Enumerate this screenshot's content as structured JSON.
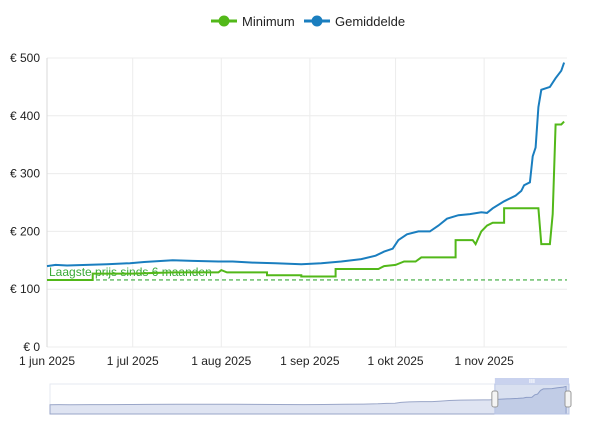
{
  "chart_data": {
    "type": "line",
    "title": "",
    "xlabel": "",
    "ylabel": "",
    "x_ticks": [
      "1 jun 2025",
      "1 jul 2025",
      "1 aug 2025",
      "1 sep 2025",
      "1 okt 2025",
      "1 nov 2025"
    ],
    "x_tick_dates": [
      "2025-06-01",
      "2025-07-01",
      "2025-08-01",
      "2025-09-01",
      "2025-10-01",
      "2025-11-01"
    ],
    "x_range": [
      "2025-06-01",
      "2025-11-30"
    ],
    "y_ticks": [
      "€ 0",
      "€ 100",
      "€ 200",
      "€ 300",
      "€ 400",
      "€ 500"
    ],
    "y_tick_values": [
      0,
      100,
      200,
      300,
      400,
      500
    ],
    "ylim": [
      0,
      500
    ],
    "grid": true,
    "legend_position": "top-center",
    "series": [
      {
        "name": "Minimum",
        "color": "#52b819",
        "style": "step",
        "points": [
          [
            "2025-06-01",
            116
          ],
          [
            "2025-06-17",
            116
          ],
          [
            "2025-06-17",
            127
          ],
          [
            "2025-07-01",
            127
          ],
          [
            "2025-07-15",
            129
          ],
          [
            "2025-07-31",
            129
          ],
          [
            "2025-08-01",
            133
          ],
          [
            "2025-08-03",
            129
          ],
          [
            "2025-08-17",
            129
          ],
          [
            "2025-08-17",
            124
          ],
          [
            "2025-08-29",
            124
          ],
          [
            "2025-08-29",
            122
          ],
          [
            "2025-09-10",
            122
          ],
          [
            "2025-09-10",
            135
          ],
          [
            "2025-09-25",
            135
          ],
          [
            "2025-09-27",
            140
          ],
          [
            "2025-10-01",
            142
          ],
          [
            "2025-10-04",
            148
          ],
          [
            "2025-10-08",
            148
          ],
          [
            "2025-10-10",
            155
          ],
          [
            "2025-10-22",
            155
          ],
          [
            "2025-10-22",
            185
          ],
          [
            "2025-10-28",
            185
          ],
          [
            "2025-10-29",
            178
          ],
          [
            "2025-10-31",
            200
          ],
          [
            "2025-11-02",
            210
          ],
          [
            "2025-11-04",
            215
          ],
          [
            "2025-11-08",
            215
          ],
          [
            "2025-11-08",
            240
          ],
          [
            "2025-11-20",
            240
          ],
          [
            "2025-11-21",
            178
          ],
          [
            "2025-11-24",
            178
          ],
          [
            "2025-11-25",
            230
          ],
          [
            "2025-11-26",
            385
          ],
          [
            "2025-11-28",
            385
          ],
          [
            "2025-11-29",
            390
          ]
        ]
      },
      {
        "name": "Gemiddelde",
        "color": "#1a7ebf",
        "style": "line",
        "points": [
          [
            "2025-06-01",
            140
          ],
          [
            "2025-06-04",
            142
          ],
          [
            "2025-06-08",
            141
          ],
          [
            "2025-06-15",
            142
          ],
          [
            "2025-06-22",
            143
          ],
          [
            "2025-06-30",
            145
          ],
          [
            "2025-07-05",
            147
          ],
          [
            "2025-07-15",
            150
          ],
          [
            "2025-07-22",
            149
          ],
          [
            "2025-07-31",
            148
          ],
          [
            "2025-08-05",
            148
          ],
          [
            "2025-08-12",
            146
          ],
          [
            "2025-08-20",
            145
          ],
          [
            "2025-08-29",
            143
          ],
          [
            "2025-09-05",
            145
          ],
          [
            "2025-09-12",
            148
          ],
          [
            "2025-09-19",
            152
          ],
          [
            "2025-09-24",
            158
          ],
          [
            "2025-09-27",
            165
          ],
          [
            "2025-09-30",
            170
          ],
          [
            "2025-10-02",
            185
          ],
          [
            "2025-10-05",
            195
          ],
          [
            "2025-10-09",
            200
          ],
          [
            "2025-10-13",
            200
          ],
          [
            "2025-10-16",
            210
          ],
          [
            "2025-10-19",
            222
          ],
          [
            "2025-10-23",
            228
          ],
          [
            "2025-10-27",
            230
          ],
          [
            "2025-10-31",
            233
          ],
          [
            "2025-11-02",
            232
          ],
          [
            "2025-11-04",
            240
          ],
          [
            "2025-11-08",
            252
          ],
          [
            "2025-11-12",
            262
          ],
          [
            "2025-11-14",
            270
          ],
          [
            "2025-11-15",
            280
          ],
          [
            "2025-11-17",
            285
          ],
          [
            "2025-11-18",
            330
          ],
          [
            "2025-11-19",
            345
          ],
          [
            "2025-11-20",
            415
          ],
          [
            "2025-11-21",
            445
          ],
          [
            "2025-11-24",
            450
          ],
          [
            "2025-11-26",
            465
          ],
          [
            "2025-11-28",
            478
          ],
          [
            "2025-11-29",
            492
          ]
        ]
      }
    ],
    "reference_line": {
      "label": "Laagste prijs sinds 6 maanden",
      "value": 116,
      "color": "#3aaa3a",
      "style": "dashed"
    },
    "navigator": {
      "selection_start": "2025-11-04",
      "selection_end": "2025-11-30"
    }
  }
}
